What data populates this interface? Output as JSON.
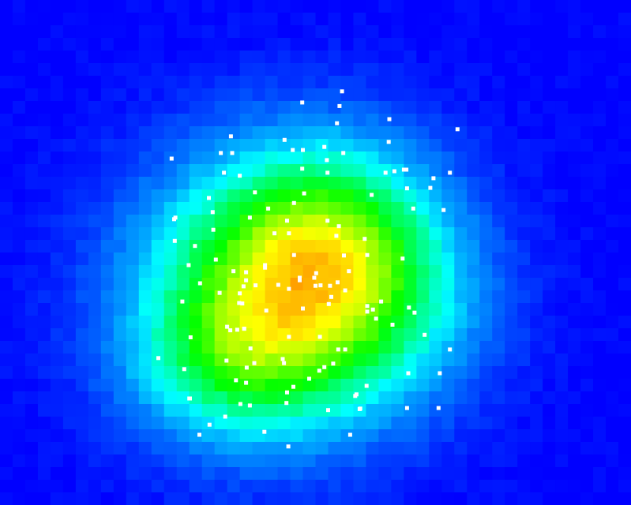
{
  "chart_data": {
    "type": "heatmap",
    "title": "",
    "xlabel": "",
    "ylabel": "",
    "grid": false,
    "legend": "none",
    "colormap": [
      "#0000ff",
      "#0050ff",
      "#00a0ff",
      "#00ffff",
      "#00ff80",
      "#00ff00",
      "#80ff00",
      "#ffff00",
      "#ffa000"
    ],
    "point_color": "#ffffff",
    "heat_model": {
      "value_range": [
        0,
        1
      ],
      "peaks": [
        {
          "center": [
            0.44,
            0.58
          ],
          "spread": [
            0.16,
            0.19
          ],
          "amplitude": 1.0
        },
        {
          "center": [
            0.54,
            0.46
          ],
          "spread": [
            0.12,
            0.14
          ],
          "amplitude": 0.42
        },
        {
          "center": [
            0.36,
            0.73
          ],
          "spread": [
            0.11,
            0.1
          ],
          "amplitude": 0.3
        },
        {
          "center": [
            0.63,
            0.62
          ],
          "spread": [
            0.12,
            0.14
          ],
          "amplitude": 0.22
        }
      ]
    },
    "points": [
      [
        0.542,
        0.181
      ],
      [
        0.479,
        0.203
      ],
      [
        0.538,
        0.21
      ],
      [
        0.534,
        0.244
      ],
      [
        0.617,
        0.236
      ],
      [
        0.725,
        0.256
      ],
      [
        0.366,
        0.27
      ],
      [
        0.451,
        0.277
      ],
      [
        0.514,
        0.291
      ],
      [
        0.544,
        0.303
      ],
      [
        0.616,
        0.281
      ],
      [
        0.272,
        0.314
      ],
      [
        0.35,
        0.303
      ],
      [
        0.368,
        0.303
      ],
      [
        0.48,
        0.297
      ],
      [
        0.464,
        0.297
      ],
      [
        0.518,
        0.317
      ],
      [
        0.479,
        0.334
      ],
      [
        0.519,
        0.342
      ],
      [
        0.625,
        0.339
      ],
      [
        0.64,
        0.336
      ],
      [
        0.355,
        0.342
      ],
      [
        0.38,
        0.348
      ],
      [
        0.687,
        0.353
      ],
      [
        0.713,
        0.342
      ],
      [
        0.682,
        0.372
      ],
      [
        0.404,
        0.381
      ],
      [
        0.482,
        0.383
      ],
      [
        0.589,
        0.386
      ],
      [
        0.645,
        0.373
      ],
      [
        0.331,
        0.392
      ],
      [
        0.425,
        0.413
      ],
      [
        0.466,
        0.402
      ],
      [
        0.655,
        0.413
      ],
      [
        0.703,
        0.416
      ],
      [
        0.337,
        0.42
      ],
      [
        0.396,
        0.431
      ],
      [
        0.455,
        0.437
      ],
      [
        0.519,
        0.437
      ],
      [
        0.276,
        0.434
      ],
      [
        0.435,
        0.462
      ],
      [
        0.458,
        0.462
      ],
      [
        0.338,
        0.455
      ],
      [
        0.537,
        0.448
      ],
      [
        0.533,
        0.467
      ],
      [
        0.578,
        0.473
      ],
      [
        0.309,
        0.487
      ],
      [
        0.277,
        0.477
      ],
      [
        0.466,
        0.505
      ],
      [
        0.545,
        0.506
      ],
      [
        0.582,
        0.505
      ],
      [
        0.638,
        0.512
      ],
      [
        0.299,
        0.525
      ],
      [
        0.342,
        0.514
      ],
      [
        0.42,
        0.525
      ],
      [
        0.553,
        0.537
      ],
      [
        0.501,
        0.541
      ],
      [
        0.37,
        0.537
      ],
      [
        0.317,
        0.561
      ],
      [
        0.39,
        0.539
      ],
      [
        0.42,
        0.53
      ],
      [
        0.475,
        0.55
      ],
      [
        0.39,
        0.555
      ],
      [
        0.386,
        0.567
      ],
      [
        0.441,
        0.564
      ],
      [
        0.475,
        0.555
      ],
      [
        0.498,
        0.55
      ],
      [
        0.508,
        0.565
      ],
      [
        0.523,
        0.566
      ],
      [
        0.535,
        0.559
      ],
      [
        0.5,
        0.566
      ],
      [
        0.547,
        0.575
      ],
      [
        0.458,
        0.572
      ],
      [
        0.405,
        0.565
      ],
      [
        0.348,
        0.58
      ],
      [
        0.38,
        0.581
      ],
      [
        0.289,
        0.597
      ],
      [
        0.379,
        0.6
      ],
      [
        0.384,
        0.601
      ],
      [
        0.525,
        0.588
      ],
      [
        0.521,
        0.602
      ],
      [
        0.582,
        0.606
      ],
      [
        0.648,
        0.609
      ],
      [
        0.657,
        0.619
      ],
      [
        0.604,
        0.597
      ],
      [
        0.591,
        0.613
      ],
      [
        0.582,
        0.617
      ],
      [
        0.48,
        0.611
      ],
      [
        0.422,
        0.615
      ],
      [
        0.36,
        0.647
      ],
      [
        0.365,
        0.654
      ],
      [
        0.376,
        0.653
      ],
      [
        0.387,
        0.651
      ],
      [
        0.596,
        0.631
      ],
      [
        0.622,
        0.643
      ],
      [
        0.673,
        0.663
      ],
      [
        0.302,
        0.668
      ],
      [
        0.387,
        0.651
      ],
      [
        0.458,
        0.667
      ],
      [
        0.507,
        0.667
      ],
      [
        0.397,
        0.69
      ],
      [
        0.536,
        0.692
      ],
      [
        0.547,
        0.692
      ],
      [
        0.713,
        0.692
      ],
      [
        0.251,
        0.709
      ],
      [
        0.359,
        0.714
      ],
      [
        0.448,
        0.711
      ],
      [
        0.528,
        0.72
      ],
      [
        0.514,
        0.727
      ],
      [
        0.391,
        0.728
      ],
      [
        0.403,
        0.719
      ],
      [
        0.292,
        0.731
      ],
      [
        0.45,
        0.719
      ],
      [
        0.506,
        0.734
      ],
      [
        0.647,
        0.739
      ],
      [
        0.697,
        0.739
      ],
      [
        0.374,
        0.753
      ],
      [
        0.39,
        0.758
      ],
      [
        0.49,
        0.75
      ],
      [
        0.465,
        0.766
      ],
      [
        0.581,
        0.764
      ],
      [
        0.565,
        0.781
      ],
      [
        0.3,
        0.789
      ],
      [
        0.455,
        0.777
      ],
      [
        0.563,
        0.784
      ],
      [
        0.454,
        0.798
      ],
      [
        0.396,
        0.803
      ],
      [
        0.57,
        0.81
      ],
      [
        0.301,
        0.789
      ],
      [
        0.571,
        0.809
      ],
      [
        0.645,
        0.808
      ],
      [
        0.332,
        0.841
      ],
      [
        0.357,
        0.825
      ],
      [
        0.419,
        0.855
      ],
      [
        0.316,
        0.861
      ],
      [
        0.555,
        0.861
      ],
      [
        0.457,
        0.884
      ],
      [
        0.695,
        0.808
      ],
      [
        0.52,
        0.812
      ],
      [
        0.611,
        0.342
      ],
      [
        0.278,
        0.431
      ],
      [
        0.644,
        0.336
      ],
      [
        0.381,
        0.8
      ]
    ]
  }
}
